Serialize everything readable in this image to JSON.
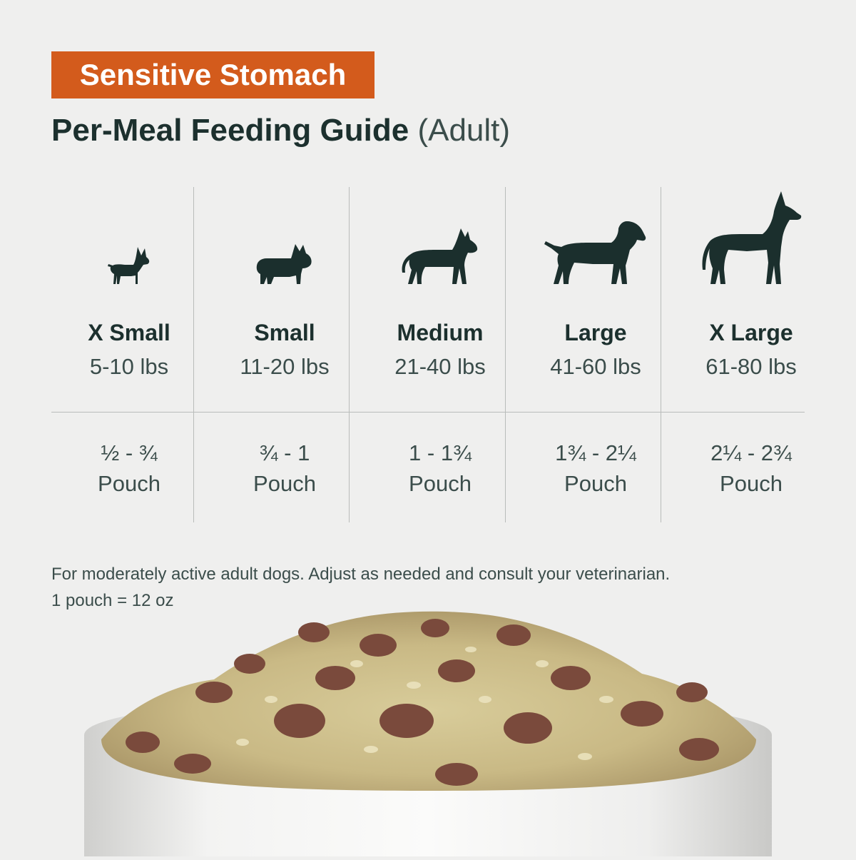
{
  "badge": "Sensitive Stomach",
  "title": {
    "main": "Per-Meal Feeding Guide",
    "sub": "(Adult)"
  },
  "columns": [
    {
      "size": "X Small",
      "weight": "5-10 lbs",
      "amount": "½ - ¾",
      "unit": "Pouch",
      "icon": "chihuahua-icon"
    },
    {
      "size": "Small",
      "weight": "11-20 lbs",
      "amount": "¾ - 1",
      "unit": "Pouch",
      "icon": "french-bulldog-icon"
    },
    {
      "size": "Medium",
      "weight": "21-40 lbs",
      "amount": "1 - 1¾",
      "unit": "Pouch",
      "icon": "pitbull-icon"
    },
    {
      "size": "Large",
      "weight": "41-60 lbs",
      "amount": "1¾ - 2¼",
      "unit": "Pouch",
      "icon": "labrador-icon"
    },
    {
      "size": "X Large",
      "weight": "61-80 lbs",
      "amount": "2¼ - 2¾",
      "unit": "Pouch",
      "icon": "great-dane-icon"
    }
  ],
  "note": {
    "line1": "For moderately active adult dogs. Adjust as needed and consult your veterinarian.",
    "line2": "1 pouch = 12 oz"
  },
  "colors": {
    "accent": "#d35b1c",
    "text": "#1c302e",
    "background": "#efefee"
  }
}
